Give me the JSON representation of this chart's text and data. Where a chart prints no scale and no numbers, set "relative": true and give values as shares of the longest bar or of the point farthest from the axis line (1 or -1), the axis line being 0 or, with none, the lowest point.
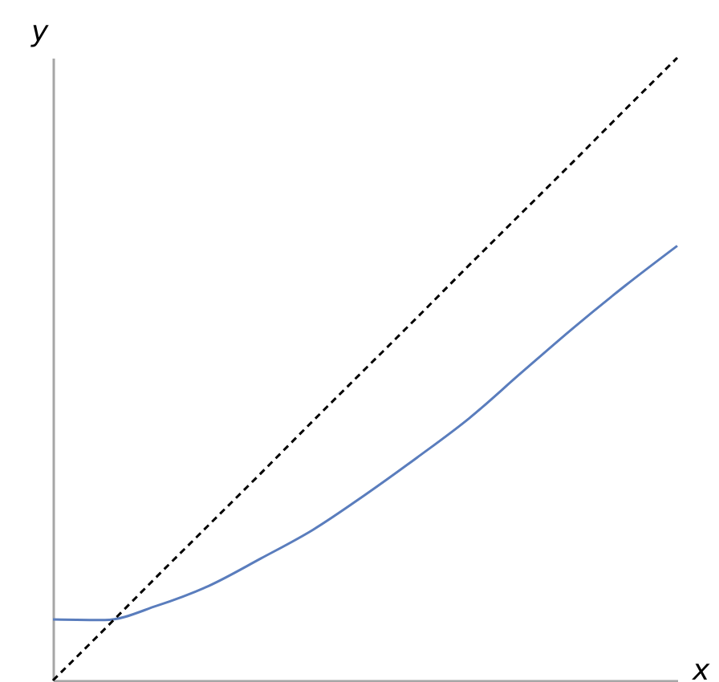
{
  "chart_data": {
    "type": "line",
    "relative": true,
    "xlabel": "x",
    "ylabel": "y",
    "grid": false,
    "marker": "none",
    "categories": [
      null,
      null,
      null,
      null,
      null,
      null,
      null,
      null,
      null,
      null,
      null,
      null,
      null
    ],
    "series": [
      {
        "color": "#5a7dbd",
        "line_style": "solid",
        "values": [
          0.098,
          0.097,
          0.12,
          0.152,
          0.196,
          0.242,
          0.298,
          0.358,
          0.421,
          0.494,
          0.566,
          0.634,
          0.698
        ]
      },
      {
        "color": "#000000",
        "line_style": "dashed",
        "values": [
          0,
          0.083,
          0.167,
          0.25,
          0.333,
          0.417,
          0.5,
          0.583,
          0.667,
          0.75,
          0.833,
          0.917,
          1
        ]
      }
    ]
  }
}
